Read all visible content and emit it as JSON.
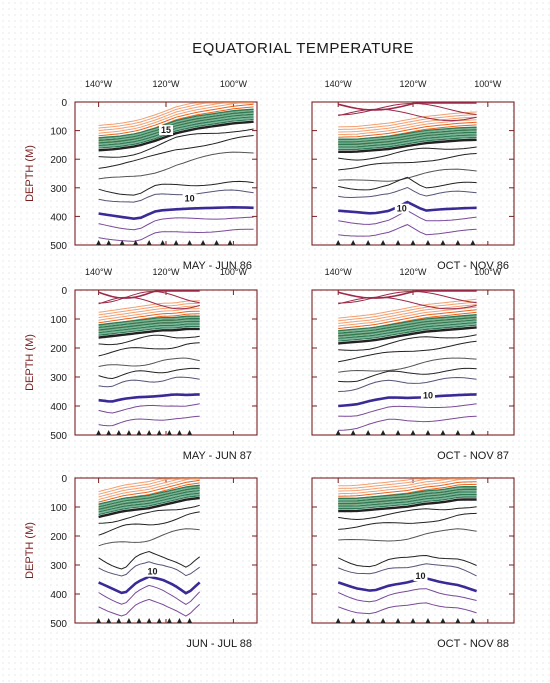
{
  "title": "EQUATORIAL TEMPERATURE",
  "colors": {
    "frame": "#7a1f1f",
    "ylabel": "#7a1f1f",
    "warm": "#e8641e",
    "warm_light": "#f2a070",
    "mid": "#2e7a55",
    "mid_light": "#7ab596",
    "cool": "#222222",
    "cold_thick": "#3a2a96",
    "cold": "#7a4a9a",
    "top": "#9a2a4a"
  },
  "chart_data": [
    {
      "type": "line",
      "chart_kind": "temperature depth-longitude section",
      "caption": "MAY - JUN 86",
      "x_ticks": [
        "140°W",
        "120°W",
        "100°W"
      ],
      "xlim_degW": [
        147,
        93
      ],
      "ylabel": "DEPTH (M)",
      "y_ticks": [
        "0",
        "100",
        "200",
        "300",
        "400",
        "500"
      ],
      "ylim": [
        0,
        500
      ],
      "data_lon_range_degW": [
        140,
        94
      ],
      "contour_labels": [
        {
          "text": "15",
          "lon_degW": 120,
          "depth": 105
        },
        {
          "text": "10",
          "lon_degW": 113,
          "depth": 345
        }
      ],
      "thermocline_depth": [
        155,
        150,
        140,
        120,
        95,
        80,
        70,
        60,
        55
      ],
      "isotherm_10C_depth": [
        390,
        400,
        410,
        380,
        375,
        372,
        370,
        368,
        370
      ],
      "ship_markers_degW": [
        140,
        137,
        133,
        129,
        125,
        121,
        117,
        113,
        109,
        105,
        101
      ],
      "has_top_isotherms": false
    },
    {
      "type": "line",
      "chart_kind": "temperature depth-longitude section",
      "caption": "OCT - NOV 86",
      "x_ticks": [
        "140°W",
        "120°W",
        "100°W"
      ],
      "xlim_degW": [
        147,
        93
      ],
      "ylabel": "",
      "y_ticks": [],
      "ylim": [
        0,
        500
      ],
      "data_lon_range_degW": [
        140,
        103
      ],
      "contour_labels": [
        {
          "text": "10",
          "lon_degW": 123,
          "depth": 380
        }
      ],
      "thermocline_depth": [
        160,
        160,
        155,
        150,
        140,
        130,
        125,
        120,
        118
      ],
      "isotherm_10C_depth": [
        380,
        385,
        390,
        380,
        350,
        380,
        375,
        372,
        370
      ],
      "ship_markers_degW": [
        140,
        136,
        132,
        128,
        124,
        120,
        116,
        112,
        108,
        104
      ],
      "has_top_isotherms": true
    },
    {
      "type": "line",
      "chart_kind": "temperature depth-longitude section",
      "caption": "MAY - JUN 87",
      "x_ticks": [
        "140°W",
        "120°W",
        "100°W"
      ],
      "xlim_degW": [
        147,
        93
      ],
      "ylabel": "DEPTH (M)",
      "y_ticks": [
        "0",
        "100",
        "200",
        "300",
        "400",
        "500"
      ],
      "ylim": [
        0,
        500
      ],
      "data_lon_range_degW": [
        140,
        110
      ],
      "contour_labels": [],
      "thermocline_depth": [
        150,
        145,
        140,
        135,
        130,
        125,
        125,
        120,
        120
      ],
      "isotherm_10C_depth": [
        380,
        385,
        375,
        370,
        368,
        365,
        360,
        362,
        360
      ],
      "ship_markers_degW": [
        140,
        137,
        134,
        131,
        128,
        125,
        122,
        119,
        116,
        113
      ],
      "has_top_isotherms": true
    },
    {
      "type": "line",
      "chart_kind": "temperature depth-longitude section",
      "caption": "OCT - NOV 87",
      "x_ticks": [
        "140°W",
        "120°W",
        "100°W"
      ],
      "xlim_degW": [
        147,
        93
      ],
      "ylabel": "",
      "y_ticks": [],
      "ylim": [
        0,
        500
      ],
      "data_lon_range_degW": [
        140,
        103
      ],
      "contour_labels": [
        {
          "text": "10",
          "lon_degW": 116,
          "depth": 370
        }
      ],
      "thermocline_depth": [
        170,
        165,
        160,
        150,
        140,
        130,
        125,
        120,
        115
      ],
      "isotherm_10C_depth": [
        400,
        395,
        380,
        370,
        372,
        370,
        365,
        362,
        360
      ],
      "ship_markers_degW": [
        140,
        136,
        132,
        128,
        124,
        120,
        116,
        112,
        108,
        104
      ],
      "has_top_isotherms": true
    },
    {
      "type": "line",
      "chart_kind": "temperature depth-longitude section",
      "caption": "JUN - JUL 88",
      "x_ticks": [],
      "xlim_degW": [
        147,
        93
      ],
      "ylabel": "DEPTH (M)",
      "y_ticks": [
        "0",
        "100",
        "200",
        "300",
        "400",
        "500"
      ],
      "ylim": [
        0,
        500
      ],
      "data_lon_range_degW": [
        140,
        110
      ],
      "contour_labels": [
        {
          "text": "10",
          "lon_degW": 124,
          "depth": 330
        }
      ],
      "thermocline_depth": [
        120,
        110,
        100,
        95,
        90,
        80,
        70,
        60,
        55
      ],
      "isotherm_10C_depth": [
        360,
        380,
        400,
        360,
        340,
        350,
        370,
        400,
        360
      ],
      "ship_markers_degW": [
        140,
        137,
        134,
        131,
        128,
        125,
        122,
        119,
        116,
        113
      ],
      "has_top_isotherms": false
    },
    {
      "type": "line",
      "chart_kind": "temperature depth-longitude section",
      "caption": "OCT - NOV 88",
      "x_ticks": [],
      "xlim_degW": [
        147,
        93
      ],
      "ylabel": "",
      "y_ticks": [],
      "ylim": [
        0,
        500
      ],
      "data_lon_range_degW": [
        140,
        103
      ],
      "contour_labels": [
        {
          "text": "10",
          "lon_degW": 118,
          "depth": 345
        }
      ],
      "thermocline_depth": [
        100,
        100,
        95,
        90,
        85,
        75,
        70,
        60,
        60
      ],
      "isotherm_10C_depth": [
        360,
        380,
        390,
        370,
        360,
        345,
        360,
        370,
        390
      ],
      "ship_markers_degW": [
        140,
        136,
        132,
        128,
        124,
        120,
        116,
        112,
        108,
        104
      ],
      "has_top_isotherms": false
    }
  ]
}
